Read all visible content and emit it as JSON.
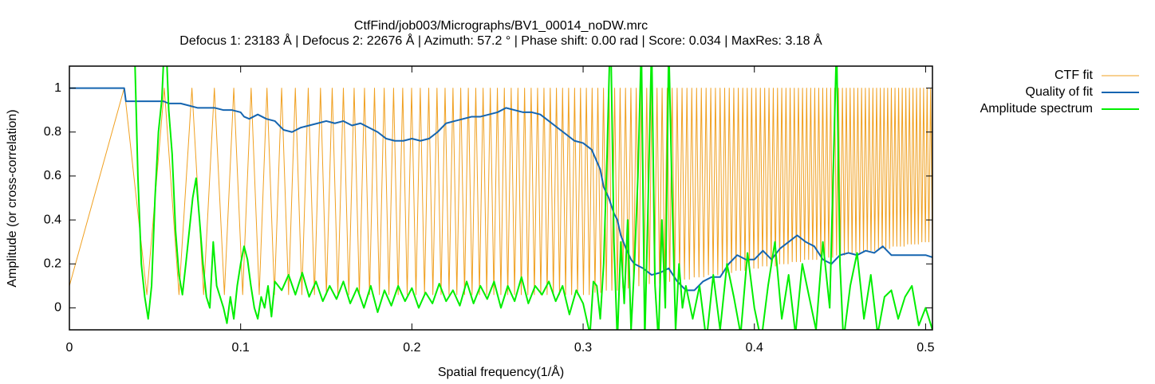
{
  "chart_data": {
    "type": "line",
    "title": "CtfFind/job003/Micrographs/BV1_00014_noDW.mrc",
    "subtitle": "Defocus 1: 23183 Å | Defocus 2: 22676 Å | Azimuth: 57.2 ° | Phase shift: 0.00 rad | Score: 0.034 | MaxRes: 3.18 Å",
    "x_label": "Spatial frequency(1/Å)",
    "y_label": "Amplitude (or cross-correlation)",
    "xlim": [
      0,
      0.504
    ],
    "ylim": [
      -0.1,
      1.1
    ],
    "xticks": [
      0,
      0.1,
      0.2,
      0.3,
      0.4,
      0.5
    ],
    "yticks": [
      0,
      0.2,
      0.4,
      0.6,
      0.8,
      1
    ],
    "legend": "outside-top-right",
    "series": [
      {
        "name": "CTF fit",
        "color": "#f0a020",
        "x": [
          0,
          0.032,
          0.04525,
          0.05543,
          0.064,
          0.07155,
          0.07838,
          0.08466,
          0.09051,
          0.096,
          0.10119,
          0.10613,
          0.11085,
          0.11538,
          0.11973,
          0.12394,
          0.128,
          0.13194,
          0.13576,
          0.13948,
          0.14311,
          0.14664,
          0.15009,
          0.15347,
          0.15677,
          0.16,
          0.16317,
          0.16628,
          0.16933,
          0.17233,
          0.17527,
          0.17817,
          0.18102,
          0.18383,
          0.18659,
          0.18931,
          0.192,
          0.19465,
          0.19726,
          0.19984,
          0.20239,
          0.2049,
          0.20738,
          0.20984,
          0.21226,
          0.21466,
          0.21703,
          0.21938,
          0.2217,
          0.224,
          0.22627,
          0.22853,
          0.23076,
          0.23296,
          0.23515,
          0.23732,
          0.23947,
          0.24159,
          0.2437,
          0.2458,
          0.24787,
          0.24993,
          0.25197,
          0.25399,
          0.256,
          0.25799,
          0.25997,
          0.26193,
          0.26388,
          0.26581,
          0.26773,
          0.26964,
          0.27153,
          0.27341,
          0.27527,
          0.27713,
          0.27897,
          0.2808,
          0.28262,
          0.28442,
          0.28622,
          0.288,
          0.28977,
          0.29153,
          0.29328,
          0.29503,
          0.29676,
          0.29848,
          0.30019,
          0.30189,
          0.30358,
          0.30526,
          0.30693,
          0.3086,
          0.31025,
          0.3119,
          0.31353,
          0.31516,
          0.31678,
          0.3184,
          0.32,
          0.3216,
          0.32318,
          0.32476,
          0.32634,
          0.3279,
          0.32946,
          0.33101,
          0.33255,
          0.33409,
          0.33562,
          0.33714,
          0.33866,
          0.34016,
          0.34167,
          0.34316,
          0.34465,
          0.34613,
          0.34761,
          0.34908,
          0.35054,
          0.352,
          0.35345,
          0.3549,
          0.35634,
          0.35777,
          0.3592,
          0.36062,
          0.36204,
          0.36345,
          0.36486,
          0.36626,
          0.36765,
          0.36904,
          0.37043,
          0.37181,
          0.37318,
          0.37455,
          0.37592,
          0.37727,
          0.37863,
          0.37998,
          0.38132,
          0.38266,
          0.384,
          0.38533,
          0.38666,
          0.38798,
          0.3893,
          0.39061,
          0.39192,
          0.39322,
          0.39452,
          0.39582,
          0.39711,
          0.3984,
          0.39968,
          0.40096,
          0.40223,
          0.4035,
          0.40477,
          0.40603,
          0.40729,
          0.40855,
          0.4098,
          0.41105,
          0.41229,
          0.41353,
          0.41477,
          0.416,
          0.41723,
          0.41845,
          0.41968,
          0.42089,
          0.42211,
          0.42332,
          0.42453,
          0.42573,
          0.42693,
          0.42813,
          0.42933,
          0.43052,
          0.4317,
          0.43289,
          0.43407,
          0.43525,
          0.43642,
          0.43759,
          0.43876,
          0.43993,
          0.44109,
          0.44225,
          0.44341,
          0.44456,
          0.44571,
          0.44686,
          0.448,
          0.44914,
          0.45028,
          0.45142,
          0.45255,
          0.45368,
          0.45481,
          0.45593,
          0.45705,
          0.45817,
          0.45929,
          0.4604,
          0.46151,
          0.46262,
          0.46372,
          0.46483,
          0.46593,
          0.46702,
          0.46812,
          0.46921,
          0.4703,
          0.47139,
          0.47247,
          0.47356,
          0.47464,
          0.47571,
          0.47679,
          0.47786,
          0.47893,
          0.48,
          0.48107,
          0.48213,
          0.48319,
          0.48425,
          0.4853,
          0.48636,
          0.48741,
          0.48846,
          0.48951,
          0.49055,
          0.49159,
          0.49263,
          0.49367,
          0.49471,
          0.49574,
          0.49677,
          0.4978,
          0.49883,
          0.49986,
          0.50088,
          0.5019,
          0.50292,
          0.50394
        ],
        "values": [
          0.1,
          1,
          0.06,
          1,
          0.06,
          1,
          0.06,
          1,
          0.06,
          1,
          0.06,
          1,
          0.06,
          1,
          0.06,
          1,
          0.06,
          1,
          0.06,
          1,
          0.06,
          1,
          0.06,
          1,
          0.06,
          1,
          0.06,
          1,
          0.06,
          1,
          0.06,
          1,
          0.06,
          1,
          0.06,
          1,
          0.06,
          1,
          0.06,
          1,
          0.06,
          1,
          0.06,
          1,
          0.06,
          1,
          0.06,
          1,
          0.06,
          1,
          0.06,
          1,
          0.06,
          1,
          0.06,
          1,
          0.06,
          1,
          0.06,
          1,
          0.06,
          1,
          0.06,
          1,
          0.06,
          1,
          0.06,
          1,
          0.06,
          1,
          0.06,
          1,
          0.06,
          1,
          0.06,
          1,
          0.06,
          1,
          0.06,
          1,
          0.06,
          1,
          0.06,
          1,
          0.06,
          1,
          0.06,
          1,
          0.06,
          1,
          0.06,
          1,
          0.07,
          1,
          0.07,
          1,
          0.08,
          1,
          0.08,
          1,
          0.08,
          1,
          0.09,
          1,
          0.09,
          1,
          0.1,
          1,
          0.1,
          1,
          0.1,
          1,
          0.11,
          1,
          0.11,
          1,
          0.11,
          1,
          0.12,
          1,
          0.12,
          1,
          0.12,
          1,
          0.13,
          1,
          0.13,
          1,
          0.13,
          1,
          0.14,
          1,
          0.14,
          1,
          0.14,
          1,
          0.15,
          1,
          0.15,
          1,
          0.15,
          1,
          0.16,
          1,
          0.16,
          1,
          0.16,
          1,
          0.17,
          1,
          0.17,
          1,
          0.17,
          1,
          0.18,
          1,
          0.18,
          1,
          0.18,
          1,
          0.19,
          1,
          0.19,
          1,
          0.19,
          1,
          0.19,
          1,
          0.2,
          1,
          0.2,
          1,
          0.2,
          1,
          0.21,
          1,
          0.21,
          1,
          0.21,
          1,
          0.22,
          1,
          0.22,
          1,
          0.22,
          1,
          0.22,
          1,
          0.23,
          1,
          0.23,
          1,
          0.23,
          1,
          0.23,
          1,
          0.24,
          1,
          0.24,
          1,
          0.24,
          1,
          0.25,
          1,
          0.25,
          1,
          0.25,
          1,
          0.25,
          1,
          0.26,
          1,
          0.26,
          1,
          0.26,
          1,
          0.26,
          1,
          0.27,
          1,
          0.27,
          1,
          0.27,
          1,
          0.27,
          1,
          0.28,
          1,
          0.28,
          1,
          0.28,
          1,
          0.28,
          1,
          0.29,
          1,
          0.29,
          1,
          0.29,
          1,
          0.29,
          1,
          0.3,
          1,
          0.3,
          1,
          0.3,
          1,
          0.3
        ]
      },
      {
        "name": "Quality of fit",
        "color": "#1565b0",
        "x": [
          0,
          0.032,
          0.033,
          0.055,
          0.058,
          0.065,
          0.07,
          0.075,
          0.085,
          0.09,
          0.095,
          0.1,
          0.102,
          0.105,
          0.11,
          0.115,
          0.12,
          0.125,
          0.13,
          0.135,
          0.14,
          0.145,
          0.15,
          0.155,
          0.16,
          0.165,
          0.17,
          0.175,
          0.18,
          0.185,
          0.19,
          0.195,
          0.2,
          0.205,
          0.21,
          0.215,
          0.22,
          0.225,
          0.23,
          0.235,
          0.24,
          0.245,
          0.25,
          0.255,
          0.26,
          0.265,
          0.27,
          0.275,
          0.28,
          0.285,
          0.29,
          0.295,
          0.3,
          0.305,
          0.31,
          0.312,
          0.315,
          0.318,
          0.32,
          0.322,
          0.325,
          0.328,
          0.33,
          0.335,
          0.34,
          0.345,
          0.35,
          0.355,
          0.36,
          0.365,
          0.37,
          0.375,
          0.38,
          0.385,
          0.39,
          0.395,
          0.4,
          0.405,
          0.41,
          0.415,
          0.42,
          0.425,
          0.43,
          0.435,
          0.44,
          0.445,
          0.45,
          0.455,
          0.46,
          0.465,
          0.47,
          0.475,
          0.48,
          0.485,
          0.49,
          0.495,
          0.5,
          0.504
        ],
        "values": [
          1,
          1,
          0.94,
          0.94,
          0.93,
          0.93,
          0.92,
          0.91,
          0.91,
          0.9,
          0.9,
          0.89,
          0.87,
          0.86,
          0.88,
          0.86,
          0.85,
          0.81,
          0.8,
          0.82,
          0.83,
          0.84,
          0.85,
          0.84,
          0.85,
          0.83,
          0.84,
          0.82,
          0.8,
          0.77,
          0.76,
          0.76,
          0.77,
          0.76,
          0.77,
          0.8,
          0.84,
          0.85,
          0.86,
          0.87,
          0.87,
          0.88,
          0.89,
          0.91,
          0.9,
          0.89,
          0.89,
          0.88,
          0.85,
          0.82,
          0.79,
          0.76,
          0.75,
          0.72,
          0.63,
          0.55,
          0.5,
          0.43,
          0.4,
          0.33,
          0.27,
          0.22,
          0.2,
          0.18,
          0.15,
          0.16,
          0.18,
          0.12,
          0.08,
          0.08,
          0.12,
          0.14,
          0.14,
          0.2,
          0.24,
          0.22,
          0.22,
          0.26,
          0.22,
          0.27,
          0.3,
          0.33,
          0.3,
          0.28,
          0.22,
          0.2,
          0.24,
          0.25,
          0.24,
          0.26,
          0.25,
          0.28,
          0.24,
          0.24,
          0.24,
          0.24,
          0.24,
          0.23
        ]
      },
      {
        "name": "Amplitude spectrum",
        "color": "#00ee00",
        "x": [
          0.038,
          0.04,
          0.042,
          0.044,
          0.046,
          0.048,
          0.05,
          0.052,
          0.054,
          0.056,
          0.058,
          0.06,
          0.062,
          0.064,
          0.066,
          0.068,
          0.07,
          0.072,
          0.074,
          0.076,
          0.078,
          0.08,
          0.082,
          0.084,
          0.086,
          0.088,
          0.09,
          0.092,
          0.094,
          0.096,
          0.098,
          0.1,
          0.102,
          0.104,
          0.106,
          0.108,
          0.11,
          0.112,
          0.114,
          0.116,
          0.118,
          0.12,
          0.124,
          0.128,
          0.132,
          0.136,
          0.14,
          0.144,
          0.148,
          0.152,
          0.156,
          0.16,
          0.164,
          0.168,
          0.172,
          0.176,
          0.18,
          0.184,
          0.188,
          0.192,
          0.196,
          0.2,
          0.204,
          0.208,
          0.212,
          0.216,
          0.22,
          0.224,
          0.228,
          0.232,
          0.236,
          0.24,
          0.244,
          0.248,
          0.252,
          0.256,
          0.26,
          0.264,
          0.268,
          0.272,
          0.276,
          0.28,
          0.284,
          0.288,
          0.292,
          0.296,
          0.3,
          0.304,
          0.306,
          0.308,
          0.31,
          0.312,
          0.314,
          0.316,
          0.318,
          0.32,
          0.322,
          0.324,
          0.326,
          0.328,
          0.33,
          0.332,
          0.334,
          0.336,
          0.338,
          0.34,
          0.342,
          0.344,
          0.346,
          0.348,
          0.35,
          0.352,
          0.354,
          0.356,
          0.358,
          0.36,
          0.364,
          0.368,
          0.372,
          0.376,
          0.38,
          0.384,
          0.388,
          0.392,
          0.396,
          0.4,
          0.404,
          0.408,
          0.412,
          0.416,
          0.42,
          0.424,
          0.428,
          0.432,
          0.436,
          0.44,
          0.444,
          0.448,
          0.45,
          0.452,
          0.456,
          0.46,
          0.464,
          0.468,
          0.472,
          0.476,
          0.48,
          0.484,
          0.488,
          0.492,
          0.496,
          0.5,
          0.504
        ],
        "values": [
          1.2,
          0.6,
          0.2,
          0.05,
          -0.05,
          0.1,
          0.5,
          0.8,
          0.95,
          1.3,
          0.9,
          0.7,
          0.35,
          0.15,
          0.06,
          0.2,
          0.35,
          0.5,
          0.59,
          0.4,
          0.2,
          0.05,
          0,
          0.3,
          0.1,
          0.05,
          0,
          -0.07,
          0.05,
          -0.05,
          0.1,
          0.2,
          0.28,
          0.22,
          0.1,
          0,
          -0.05,
          0.05,
          0,
          0.1,
          -0.04,
          0.12,
          0.08,
          0.15,
          0.06,
          0.16,
          0.05,
          0.12,
          0.03,
          0.1,
          0.04,
          0.12,
          0.02,
          0.09,
          0,
          0.1,
          -0.02,
          0.08,
          0.01,
          0.1,
          0.03,
          0.09,
          0,
          0.07,
          0.02,
          0.11,
          0.03,
          0.08,
          0.01,
          0.12,
          0.02,
          0.1,
          0.04,
          0.12,
          0,
          0.1,
          0.03,
          0.14,
          0.02,
          0.1,
          0.06,
          0.12,
          0.03,
          0.1,
          -0.03,
          0.08,
          0.02,
          -0.12,
          0.12,
          0.1,
          -0.05,
          0.2,
          0.7,
          1.3,
          0.3,
          -0.15,
          0.3,
          0.02,
          0.4,
          -0.1,
          0.2,
          0.6,
          1.2,
          -0.15,
          0.5,
          1.2,
          0.1,
          -0.15,
          0.4,
          0,
          1.2,
          0.5,
          -0.1,
          0.2,
          0,
          0.1,
          -0.05,
          0.1,
          -0.15,
          0.15,
          -0.1,
          0.2,
          0.05,
          -0.12,
          0.25,
          0,
          -0.15,
          0.1,
          0.3,
          -0.05,
          0.15,
          -0.12,
          0.2,
          0.05,
          -0.1,
          0.3,
          0,
          1.2,
          0.2,
          -0.15,
          0.1,
          0.25,
          -0.05,
          0.15,
          -0.12,
          0.05,
          0.08,
          -0.05,
          0.05,
          0.1,
          -0.08,
          0,
          -0.1
        ]
      }
    ]
  }
}
